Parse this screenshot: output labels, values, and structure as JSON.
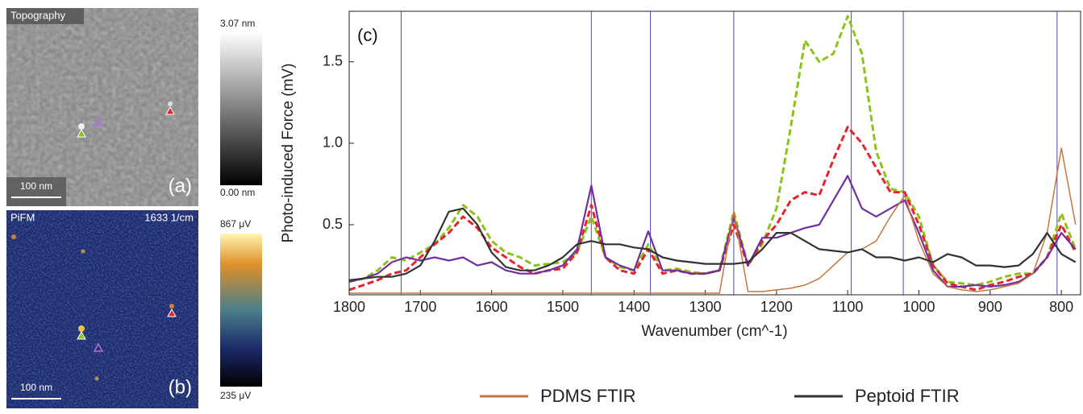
{
  "images": [
    {
      "title": "Topography",
      "scale": "100 nm",
      "label": "(a)",
      "colorbar_max": "3.07 nm",
      "colorbar_min": "0.00 nm"
    },
    {
      "title": "PiFM",
      "wavenumber": "1633 1/cm",
      "scale": "100 nm",
      "label": "(b)",
      "colorbar_max": "867 μV",
      "colorbar_min": "235 μV"
    }
  ],
  "chart_data": {
    "type": "line",
    "annotation": "(c)",
    "x_label": "Wavenumber (cm^-1)",
    "y_label": "Photo-induced Force (mV)",
    "xlim": [
      1800,
      773
    ],
    "xticks": [
      1800,
      1700,
      1600,
      1500,
      1400,
      1300,
      1200,
      1100,
      1000,
      900,
      800
    ],
    "ylim": [
      0.07,
      1.81
    ],
    "yticks": [
      0.5,
      {
        "value": 1,
        "label": "1.0"
      },
      1.5
    ],
    "vlines": [
      1727,
      1460,
      1377,
      1260,
      1095,
      1022,
      806
    ],
    "vline_color": "#4a4ab8",
    "x": [
      1800,
      1780,
      1760,
      1740,
      1720,
      1700,
      1680,
      1660,
      1640,
      1620,
      1600,
      1580,
      1560,
      1540,
      1520,
      1500,
      1480,
      1460,
      1440,
      1420,
      1400,
      1380,
      1360,
      1340,
      1320,
      1300,
      1280,
      1260,
      1240,
      1220,
      1200,
      1180,
      1160,
      1140,
      1120,
      1100,
      1080,
      1060,
      1040,
      1020,
      1000,
      980,
      960,
      940,
      920,
      900,
      880,
      860,
      840,
      820,
      800,
      780
    ],
    "series": [
      {
        "color": "#8cc21a",
        "style": "dashed",
        "values": [
          0.15,
          0.17,
          0.22,
          0.3,
          0.28,
          0.33,
          0.38,
          0.48,
          0.62,
          0.55,
          0.4,
          0.33,
          0.3,
          0.25,
          0.26,
          0.27,
          0.33,
          0.55,
          0.3,
          0.24,
          0.22,
          0.38,
          0.22,
          0.23,
          0.21,
          0.2,
          0.22,
          0.58,
          0.25,
          0.38,
          0.6,
          1.1,
          1.63,
          1.5,
          1.55,
          1.78,
          1.55,
          0.95,
          0.72,
          0.7,
          0.55,
          0.25,
          0.15,
          0.14,
          0.13,
          0.15,
          0.18,
          0.2,
          0.2,
          0.3,
          0.57,
          0.35
        ]
      },
      {
        "color": "#e8232a",
        "style": "dashed",
        "values": [
          0.1,
          0.13,
          0.16,
          0.2,
          0.22,
          0.3,
          0.38,
          0.45,
          0.55,
          0.48,
          0.36,
          0.3,
          0.24,
          0.2,
          0.22,
          0.23,
          0.33,
          0.62,
          0.3,
          0.22,
          0.2,
          0.35,
          0.2,
          0.22,
          0.2,
          0.2,
          0.22,
          0.5,
          0.25,
          0.4,
          0.5,
          0.65,
          0.7,
          0.68,
          0.9,
          1.1,
          1.0,
          0.85,
          0.7,
          0.7,
          0.5,
          0.25,
          0.14,
          0.12,
          0.1,
          0.13,
          0.15,
          0.18,
          0.2,
          0.3,
          0.5,
          0.33
        ]
      },
      {
        "color": "#7030a0",
        "style": "solid",
        "values": [
          0.15,
          0.17,
          0.2,
          0.27,
          0.3,
          0.28,
          0.3,
          0.28,
          0.3,
          0.25,
          0.27,
          0.22,
          0.2,
          0.2,
          0.22,
          0.25,
          0.35,
          0.74,
          0.3,
          0.25,
          0.22,
          0.46,
          0.22,
          0.22,
          0.2,
          0.2,
          0.22,
          0.55,
          0.25,
          0.42,
          0.42,
          0.45,
          0.48,
          0.5,
          0.65,
          0.8,
          0.6,
          0.55,
          0.6,
          0.65,
          0.45,
          0.22,
          0.12,
          0.12,
          0.13,
          0.12,
          0.13,
          0.15,
          0.2,
          0.3,
          0.45,
          0.35
        ]
      },
      {
        "name": "PDMS FTIR",
        "color": "#c5773f",
        "style": "thin",
        "values": [
          0.08,
          0.08,
          0.08,
          0.08,
          0.08,
          0.08,
          0.08,
          0.08,
          0.08,
          0.08,
          0.08,
          0.08,
          0.08,
          0.08,
          0.08,
          0.08,
          0.08,
          0.08,
          0.08,
          0.08,
          0.08,
          0.08,
          0.08,
          0.08,
          0.08,
          0.08,
          0.08,
          0.58,
          0.09,
          0.09,
          0.1,
          0.11,
          0.13,
          0.17,
          0.25,
          0.33,
          0.35,
          0.4,
          0.55,
          0.68,
          0.4,
          0.2,
          0.12,
          0.1,
          0.09,
          0.1,
          0.12,
          0.14,
          0.2,
          0.45,
          0.97,
          0.5
        ]
      },
      {
        "name": "Peptoid FTIR",
        "color": "#333333",
        "style": "solid",
        "values": [
          0.16,
          0.17,
          0.18,
          0.18,
          0.2,
          0.25,
          0.4,
          0.58,
          0.6,
          0.5,
          0.33,
          0.24,
          0.22,
          0.22,
          0.25,
          0.3,
          0.38,
          0.4,
          0.38,
          0.38,
          0.36,
          0.35,
          0.3,
          0.28,
          0.27,
          0.26,
          0.26,
          0.26,
          0.27,
          0.35,
          0.45,
          0.45,
          0.4,
          0.35,
          0.34,
          0.33,
          0.35,
          0.3,
          0.3,
          0.28,
          0.3,
          0.27,
          0.32,
          0.3,
          0.25,
          0.25,
          0.24,
          0.25,
          0.32,
          0.45,
          0.32,
          0.27
        ]
      }
    ]
  }
}
